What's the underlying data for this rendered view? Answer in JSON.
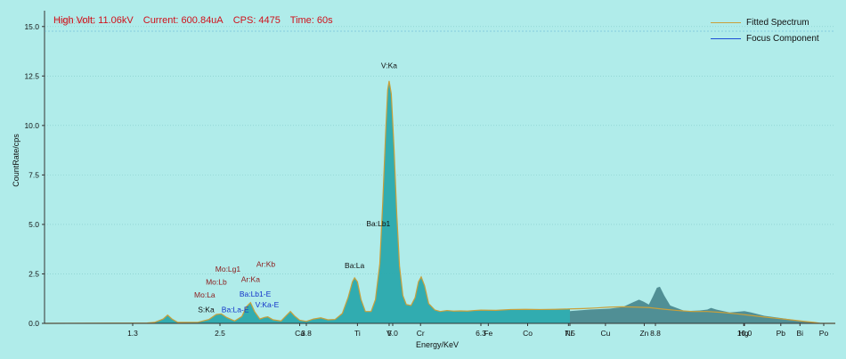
{
  "status": {
    "high_volt": "High Volt: 11.06kV",
    "current": "Current: 600.84uA",
    "cps": "CPS: 4475",
    "time": "Time: 60s",
    "overlay_text": "Total:4475"
  },
  "legend": [
    {
      "label": "Fitted Spectrum",
      "color": "#c9a03a"
    },
    {
      "label": "Focus Component",
      "color": "#1f4fd6"
    }
  ],
  "colors": {
    "background": "#b0ecea",
    "spectrum_fill": "#2aa9ad",
    "spectrum_fill_dark": "#3f7f86",
    "fitted_line": "#c9a03a",
    "element_red": "#8b1a1a",
    "element_blue": "#1232c8",
    "element_black": "#111111"
  },
  "chart_data": {
    "type": "area",
    "xlabel": "Energy/KeV",
    "ylabel": "CountRate/cps",
    "xlim": [
      0.0,
      17.0
    ],
    "ylim": [
      0,
      15.8
    ],
    "yticks": [
      0.0,
      2.5,
      5.0,
      7.5,
      10.0,
      12.5,
      15.0
    ],
    "ytick_labels": [
      "0.0",
      "2.5",
      "5.0",
      "7.5",
      "10.0",
      "12.5",
      "15.0"
    ],
    "xticks": [
      {
        "x": 1.3,
        "label": "1.3"
      },
      {
        "x": 2.5,
        "label": "2.5"
      },
      {
        "x": 3.7,
        "label": "Ca"
      },
      {
        "x": 3.8,
        "label": "3.8"
      },
      {
        "x": 4.51,
        "label": "Ti"
      },
      {
        "x": 4.95,
        "label": "V"
      },
      {
        "x": 5.0,
        "label": "5.0"
      },
      {
        "x": 5.41,
        "label": "Cr"
      },
      {
        "x": 6.3,
        "label": "6.3"
      },
      {
        "x": 6.4,
        "label": "Fe"
      },
      {
        "x": 6.93,
        "label": "Co"
      },
      {
        "x": 7.48,
        "label": "Ni"
      },
      {
        "x": 7.5,
        "label": "7.5"
      },
      {
        "x": 8.04,
        "label": "Cu"
      },
      {
        "x": 8.63,
        "label": "Zn"
      },
      {
        "x": 8.8,
        "label": "8.8"
      },
      {
        "x": 9.99,
        "label": "Hg"
      },
      {
        "x": 10.0,
        "label": "10.0"
      },
      {
        "x": 10.55,
        "label": "Pb"
      },
      {
        "x": 10.84,
        "label": "Bi"
      },
      {
        "x": 11.2,
        "label": "Po"
      }
    ],
    "peak_labels": [
      {
        "label": "V:Ka",
        "x": 4.95,
        "y": 12.9,
        "color": "black"
      },
      {
        "label": "Ba:Lb1",
        "x": 4.8,
        "y": 4.9,
        "color": "black"
      },
      {
        "label": "Ba:La",
        "x": 4.47,
        "y": 2.8,
        "color": "black"
      },
      {
        "label": "Ar:Kb",
        "x": 3.19,
        "y": 2.85,
        "color": "red"
      },
      {
        "label": "Mo:Lg1",
        "x": 2.62,
        "y": 2.6,
        "color": "red"
      },
      {
        "label": "Ar:Ka",
        "x": 2.96,
        "y": 2.1,
        "color": "red"
      },
      {
        "label": "Mo:Lb",
        "x": 2.45,
        "y": 1.95,
        "color": "red"
      },
      {
        "label": "Ba:Lb1-E",
        "x": 3.03,
        "y": 1.35,
        "color": "blue"
      },
      {
        "label": "Mo:La",
        "x": 2.29,
        "y": 1.3,
        "color": "red"
      },
      {
        "label": "V:Ka-E",
        "x": 3.21,
        "y": 0.8,
        "color": "blue"
      },
      {
        "label": "Ba:La-E",
        "x": 2.73,
        "y": 0.57,
        "color": "blue"
      },
      {
        "label": "S:Ka",
        "x": 2.31,
        "y": 0.57,
        "color": "black"
      }
    ],
    "series": [
      {
        "name": "Fitted Spectrum",
        "points": [
          [
            0.9,
            0.0
          ],
          [
            1.5,
            0.02
          ],
          [
            1.6,
            0.05
          ],
          [
            1.72,
            0.22
          ],
          [
            1.78,
            0.42
          ],
          [
            1.84,
            0.22
          ],
          [
            1.92,
            0.05
          ],
          [
            2.2,
            0.06
          ],
          [
            2.35,
            0.2
          ],
          [
            2.45,
            0.45
          ],
          [
            2.52,
            0.48
          ],
          [
            2.6,
            0.3
          ],
          [
            2.72,
            0.12
          ],
          [
            2.83,
            0.35
          ],
          [
            2.9,
            0.85
          ],
          [
            2.96,
            1.05
          ],
          [
            3.02,
            0.6
          ],
          [
            3.1,
            0.22
          ],
          [
            3.17,
            0.3
          ],
          [
            3.22,
            0.33
          ],
          [
            3.3,
            0.18
          ],
          [
            3.42,
            0.12
          ],
          [
            3.5,
            0.4
          ],
          [
            3.56,
            0.6
          ],
          [
            3.62,
            0.38
          ],
          [
            3.7,
            0.16
          ],
          [
            3.8,
            0.1
          ],
          [
            3.9,
            0.22
          ],
          [
            4.0,
            0.28
          ],
          [
            4.1,
            0.18
          ],
          [
            4.2,
            0.2
          ],
          [
            4.3,
            0.5
          ],
          [
            4.38,
            1.3
          ],
          [
            4.44,
            2.1
          ],
          [
            4.47,
            2.3
          ],
          [
            4.51,
            2.1
          ],
          [
            4.56,
            1.2
          ],
          [
            4.62,
            0.6
          ],
          [
            4.7,
            0.6
          ],
          [
            4.76,
            1.2
          ],
          [
            4.82,
            3.0
          ],
          [
            4.86,
            6.0
          ],
          [
            4.9,
            9.5
          ],
          [
            4.93,
            11.8
          ],
          [
            4.95,
            12.25
          ],
          [
            4.98,
            11.6
          ],
          [
            5.02,
            8.8
          ],
          [
            5.06,
            5.5
          ],
          [
            5.1,
            2.9
          ],
          [
            5.15,
            1.4
          ],
          [
            5.2,
            0.95
          ],
          [
            5.27,
            0.9
          ],
          [
            5.33,
            1.3
          ],
          [
            5.38,
            2.1
          ],
          [
            5.42,
            2.35
          ],
          [
            5.47,
            1.9
          ],
          [
            5.53,
            1.0
          ],
          [
            5.62,
            0.68
          ],
          [
            5.7,
            0.6
          ],
          [
            5.8,
            0.65
          ],
          [
            5.9,
            0.62
          ],
          [
            6.0,
            0.63
          ],
          [
            6.1,
            0.62
          ],
          [
            6.2,
            0.65
          ],
          [
            6.3,
            0.67
          ],
          [
            6.5,
            0.66
          ],
          [
            6.7,
            0.7
          ],
          [
            6.9,
            0.71
          ],
          [
            7.1,
            0.7
          ],
          [
            7.3,
            0.71
          ],
          [
            7.5,
            0.73
          ],
          [
            7.7,
            0.75
          ],
          [
            7.9,
            0.78
          ],
          [
            8.1,
            0.82
          ],
          [
            8.3,
            0.84
          ],
          [
            8.5,
            0.82
          ],
          [
            8.7,
            0.8
          ],
          [
            8.9,
            0.72
          ],
          [
            9.1,
            0.65
          ],
          [
            9.3,
            0.6
          ],
          [
            9.5,
            0.6
          ],
          [
            9.7,
            0.55
          ],
          [
            9.9,
            0.48
          ],
          [
            10.1,
            0.4
          ],
          [
            10.3,
            0.32
          ],
          [
            10.5,
            0.25
          ],
          [
            10.7,
            0.18
          ],
          [
            10.9,
            0.1
          ],
          [
            11.05,
            0.05
          ],
          [
            11.15,
            0.0
          ],
          [
            11.4,
            0.0
          ]
        ]
      },
      {
        "name": "Focus Component",
        "points": [
          [
            0.9,
            0.0
          ],
          [
            11.4,
            0.0
          ]
        ]
      }
    ],
    "background_spectrum": [
      [
        7.5,
        0.62
      ],
      [
        7.8,
        0.7
      ],
      [
        8.1,
        0.74
      ],
      [
        8.3,
        0.82
      ],
      [
        8.45,
        1.05
      ],
      [
        8.55,
        1.2
      ],
      [
        8.62,
        1.1
      ],
      [
        8.7,
        0.95
      ],
      [
        8.76,
        1.35
      ],
      [
        8.82,
        1.8
      ],
      [
        8.86,
        1.85
      ],
      [
        8.92,
        1.4
      ],
      [
        9.0,
        0.9
      ],
      [
        9.2,
        0.62
      ],
      [
        9.4,
        0.65
      ],
      [
        9.5,
        0.7
      ],
      [
        9.55,
        0.78
      ],
      [
        9.62,
        0.7
      ],
      [
        9.8,
        0.55
      ],
      [
        10.0,
        0.62
      ],
      [
        10.1,
        0.55
      ],
      [
        10.3,
        0.38
      ],
      [
        10.6,
        0.25
      ],
      [
        10.9,
        0.1
      ],
      [
        11.15,
        0.0
      ]
    ]
  }
}
